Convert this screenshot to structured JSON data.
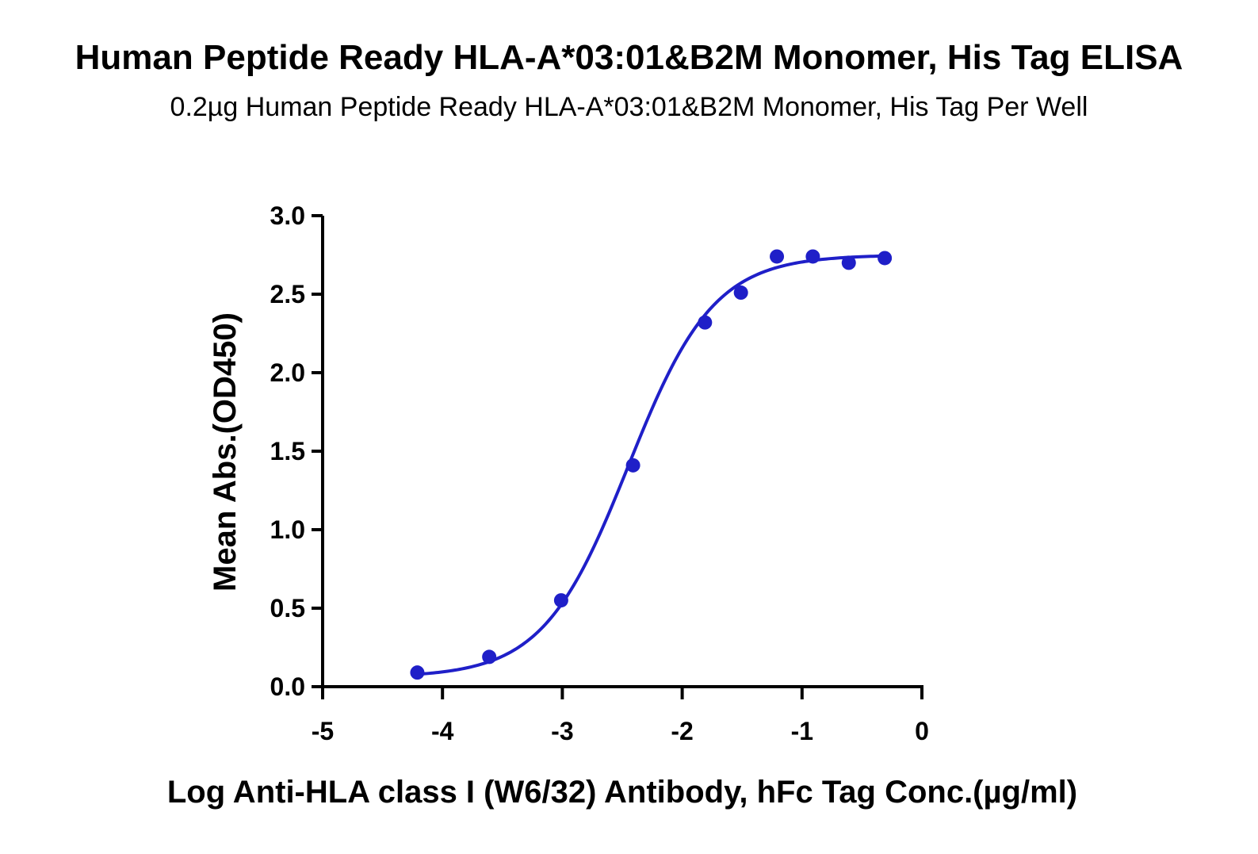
{
  "chart_data": {
    "type": "scatter",
    "title": "Human Peptide Ready HLA-A*03:01&B2M Monomer, His Tag ELISA",
    "subtitle": "0.2µg Human Peptide Ready HLA-A*03:01&B2M Monomer, His Tag Per Well",
    "xlabel": "Log Anti-HLA class I (W6/32) Antibody, hFc Tag Conc.(µg/ml)",
    "ylabel": "Mean Abs.(OD450)",
    "xlim": [
      -5,
      0
    ],
    "ylim": [
      0,
      3.0
    ],
    "x_ticks": [
      "-5",
      "-4",
      "-3",
      "-2",
      "-1",
      "0"
    ],
    "y_ticks": [
      "0.0",
      "0.5",
      "1.0",
      "1.5",
      "2.0",
      "2.5",
      "3.0"
    ],
    "grid": false,
    "series": [
      {
        "x": [
          -4.21,
          -3.61,
          -3.01,
          -2.41,
          -1.81,
          -1.51,
          -1.21,
          -0.91,
          -0.61,
          -0.31
        ],
        "y": [
          0.09,
          0.19,
          0.55,
          1.41,
          2.32,
          2.51,
          2.74,
          2.74,
          2.7,
          2.73
        ],
        "color": "#1f1fc8"
      }
    ],
    "fit_curve": {
      "type": "4PL",
      "bottom": 0.06,
      "top": 2.75,
      "log_ec50": -2.45,
      "hill": 1.22,
      "x_range": [
        -4.21,
        -0.31
      ],
      "color": "#1f1fc8"
    }
  }
}
